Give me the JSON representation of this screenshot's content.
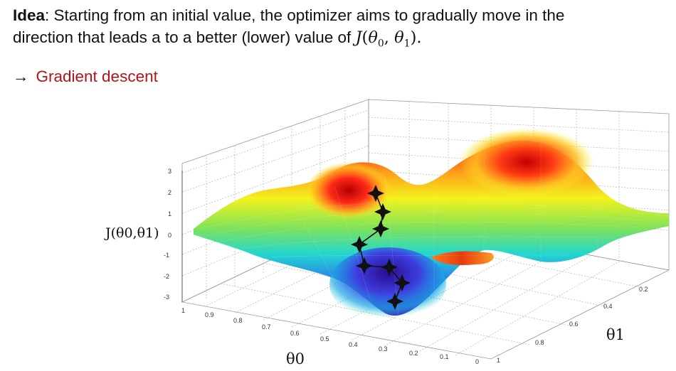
{
  "text": {
    "idea_label": "Idea",
    "idea_colon": ":",
    "idea_line1_rest": " Starting from an initial value, the optimizer aims to gradually move in the",
    "idea_line2": "direction that leads a to a better (lower) value of ",
    "formula_J": "J",
    "formula_open": "(",
    "formula_theta0": "θ",
    "formula_sub0": "0",
    "formula_comma": ", ",
    "formula_theta1": "θ",
    "formula_sub1": "1",
    "formula_close": ").",
    "bullet_arrow": "→",
    "bullet_text": "Gradient descent"
  },
  "plot": {
    "z_axis_label": "J(θ0,θ1)",
    "x_axis_label": "θ0",
    "y_axis_label": "θ1",
    "z_ticks": [
      "3",
      "2",
      "1",
      "0",
      "-1",
      "-2",
      "-3"
    ],
    "theta0_ticks": [
      "1",
      "0.9",
      "0.8",
      "0.7",
      "0.6",
      "0.5",
      "0.4",
      "0.3",
      "0.2",
      "0.1",
      "0"
    ],
    "theta1_ticks": [
      "1",
      "0.8",
      "0.6",
      "0.4",
      "0.2"
    ],
    "colors": {
      "peak": "#d40f0f",
      "valley": "#3a1fb8",
      "mid": "#7ee35a",
      "path": "#111111"
    }
  }
}
